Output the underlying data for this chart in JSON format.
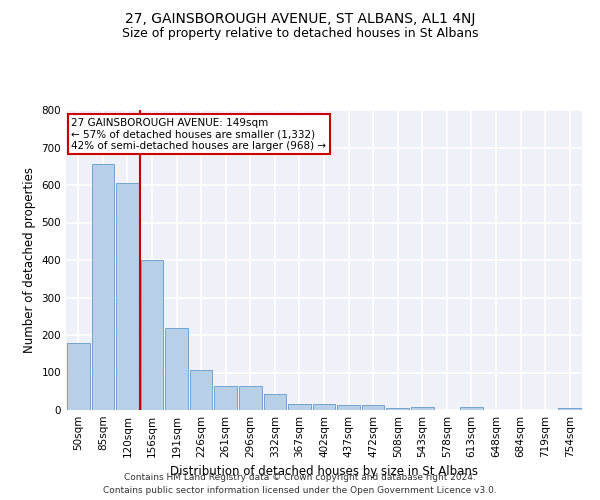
{
  "title": "27, GAINSBOROUGH AVENUE, ST ALBANS, AL1 4NJ",
  "subtitle": "Size of property relative to detached houses in St Albans",
  "xlabel": "Distribution of detached houses by size in St Albans",
  "ylabel": "Number of detached properties",
  "footer1": "Contains HM Land Registry data © Crown copyright and database right 2024.",
  "footer2": "Contains public sector information licensed under the Open Government Licence v3.0.",
  "categories": [
    "50sqm",
    "85sqm",
    "120sqm",
    "156sqm",
    "191sqm",
    "226sqm",
    "261sqm",
    "296sqm",
    "332sqm",
    "367sqm",
    "402sqm",
    "437sqm",
    "472sqm",
    "508sqm",
    "543sqm",
    "578sqm",
    "613sqm",
    "648sqm",
    "684sqm",
    "719sqm",
    "754sqm"
  ],
  "values": [
    178,
    655,
    605,
    400,
    218,
    107,
    63,
    63,
    43,
    17,
    16,
    14,
    13,
    5,
    9,
    1,
    8,
    1,
    1,
    1,
    6
  ],
  "bar_color": "#b8cfe8",
  "bar_edge_color": "#6699cc",
  "annotation_text": "27 GAINSBOROUGH AVENUE: 149sqm\n← 57% of detached houses are smaller (1,332)\n42% of semi-detached houses are larger (968) →",
  "annotation_box_color": "white",
  "annotation_border_color": "#cc0000",
  "vline_color": "#cc0000",
  "vline_x_index": 2.5,
  "ylim": [
    0,
    800
  ],
  "yticks": [
    0,
    100,
    200,
    300,
    400,
    500,
    600,
    700,
    800
  ],
  "background_color": "#eef2f8",
  "grid_color": "white",
  "title_fontsize": 10,
  "subtitle_fontsize": 9,
  "axis_label_fontsize": 8.5,
  "tick_fontsize": 7.5,
  "annotation_fontsize": 7.5,
  "footer_fontsize": 6.5
}
